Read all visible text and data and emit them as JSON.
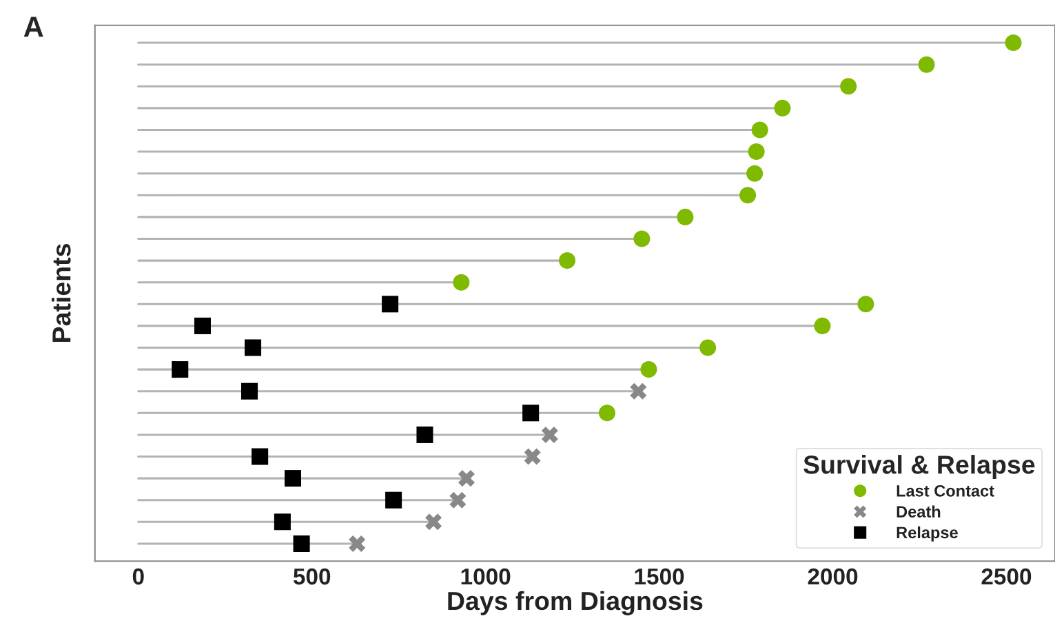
{
  "chart_data": {
    "type": "lollipop",
    "orientation": "horizontal",
    "xlabel": "Days from Diagnosis",
    "ylabel": "Patients",
    "legend_title": "Survival & Relapse",
    "legend": "bottom right",
    "tick_labels": "x",
    "grid": false,
    "annotations": [
      "A"
    ],
    "categories": [
      null,
      null,
      null,
      null,
      null,
      null,
      null,
      null,
      null,
      null,
      null,
      null,
      null,
      null,
      null,
      null,
      null,
      null,
      null,
      null,
      null,
      null,
      null,
      null
    ],
    "xlim": [
      -125,
      2640
    ],
    "xticks": [
      0,
      500,
      1000,
      1500,
      2000,
      2500
    ],
    "series": [
      {
        "name": "Last Contact",
        "marker": "circle",
        "color": "#7fba00",
        "values": [
          2520,
          2270,
          2045,
          1855,
          1790,
          1780,
          1775,
          1755,
          1575,
          1450,
          1235,
          930,
          2095,
          1970,
          1640,
          1470,
          null,
          1350,
          null,
          null,
          null,
          null,
          null,
          null
        ]
      },
      {
        "name": "Death",
        "marker": "cross",
        "color": "#888888",
        "values": [
          null,
          null,
          null,
          null,
          null,
          null,
          null,
          null,
          null,
          null,
          null,
          null,
          null,
          null,
          null,
          null,
          1440,
          null,
          1185,
          1135,
          945,
          920,
          850,
          630
        ]
      },
      {
        "name": "Relapse",
        "type": "scatter",
        "marker": "square",
        "color": "#000000",
        "values": [
          null,
          null,
          null,
          null,
          null,
          null,
          null,
          null,
          null,
          null,
          null,
          null,
          725,
          185,
          330,
          120,
          320,
          1130,
          825,
          350,
          445,
          735,
          415,
          470
        ]
      }
    ]
  }
}
